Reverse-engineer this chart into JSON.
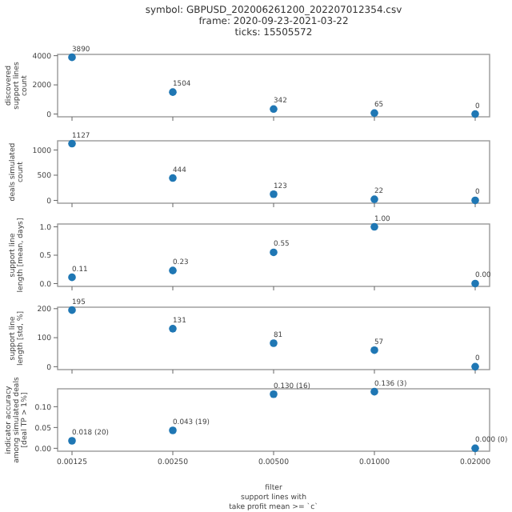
{
  "chart_data": [
    {
      "type": "scatter",
      "title": "symbol: GBPUSD_202006261200_202207012354.csv\nframe: 2020-09-23-2021-03-22\nticks: 15505572",
      "ylabel": "discovered\nsupport lines\ncount",
      "categories": [
        "0.00125",
        "0.00250",
        "0.00500",
        "0.01000",
        "0.02000"
      ],
      "values": [
        3890,
        1504,
        342,
        65,
        0
      ],
      "value_labels": [
        "3890",
        "1504",
        "342",
        "65",
        "0"
      ],
      "color": "#1f77b4",
      "marker": "circle",
      "ylim": [
        -190,
        4090
      ],
      "yticks": [
        0,
        2000,
        4000
      ],
      "tick_labels": "y",
      "grid": false
    },
    {
      "type": "scatter",
      "ylabel": "deals simulated\ncount",
      "categories": [
        "0.00125",
        "0.00250",
        "0.00500",
        "0.01000",
        "0.02000"
      ],
      "values": [
        1127,
        444,
        123,
        22,
        0
      ],
      "value_labels": [
        "1127",
        "444",
        "123",
        "22",
        "0"
      ],
      "color": "#1f77b4",
      "marker": "circle",
      "ylim": [
        -56,
        1183
      ],
      "yticks": [
        0,
        500,
        1000
      ],
      "tick_labels": "y",
      "grid": false
    },
    {
      "type": "scatter",
      "ylabel": "support line\nlength [mean, days]",
      "categories": [
        "0.00125",
        "0.00250",
        "0.00500",
        "0.01000",
        "0.02000"
      ],
      "values": [
        0.11,
        0.23,
        0.55,
        1.0,
        0
      ],
      "value_labels": [
        "0.11",
        "0.23",
        "0.55",
        "1.00",
        "0.00"
      ],
      "color": "#1f77b4",
      "marker": "circle",
      "ylim": [
        -0.05,
        1.05
      ],
      "yticks": [
        {
          "value": 0,
          "label": "0.0"
        },
        {
          "value": 0.5,
          "label": "0.5"
        },
        {
          "value": 1,
          "label": "1.0"
        }
      ],
      "tick_labels": "y",
      "grid": false
    },
    {
      "type": "scatter",
      "ylabel": "support line\nlength [std, %]",
      "categories": [
        "0.00125",
        "0.00250",
        "0.00500",
        "0.01000",
        "0.02000"
      ],
      "values": [
        195,
        131,
        81,
        57,
        0
      ],
      "value_labels": [
        "195",
        "131",
        "81",
        "57",
        "0"
      ],
      "color": "#1f77b4",
      "marker": "circle",
      "ylim": [
        -10,
        205
      ],
      "yticks": [
        0,
        100,
        200
      ],
      "tick_labels": "y",
      "grid": false
    },
    {
      "type": "scatter",
      "ylabel": "indicator accuracy\namong simulated deals\n[deal TP > 1%]",
      "xlabel": "filter\nsupport lines with\ntake profit mean >= `c`",
      "categories": [
        "0.00125",
        "0.00250",
        "0.00500",
        "0.01000",
        "0.02000"
      ],
      "values": [
        0.018,
        0.043,
        0.13,
        0.136,
        0
      ],
      "value_labels": [
        "0.018 (20)",
        "0.043 (19)",
        "0.130 (16)",
        "0.136 (3)",
        "0.000 (0)"
      ],
      "color": "#1f77b4",
      "marker": "circle",
      "ylim": [
        -0.007,
        0.143
      ],
      "yticks": [
        {
          "value": 0,
          "label": "0.00"
        },
        {
          "value": 0.05,
          "label": "0.05"
        },
        {
          "value": 0.1,
          "label": "0.10"
        }
      ],
      "grid": false
    }
  ]
}
